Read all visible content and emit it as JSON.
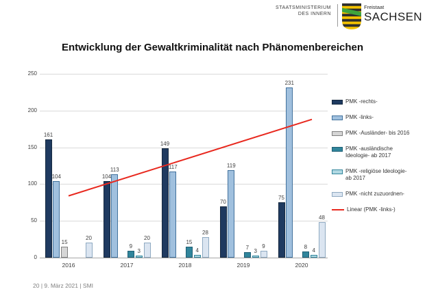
{
  "header": {
    "ministry_line1": "STAATSMINISTERIUM",
    "ministry_line2": "DES INNERN",
    "state_small": "Freistaat",
    "state_large": "SACHSEN"
  },
  "title": "Entwicklung der Gewaltkriminalität nach Phänomenbereichen",
  "footer": {
    "text": "20 | 9. März 2021 | SMI"
  },
  "chart_data": {
    "type": "bar",
    "title": "Entwicklung der Gewaltkriminalität nach Phänomenbereichen",
    "categories": [
      "2016",
      "2017",
      "2018",
      "2019",
      "2020"
    ],
    "series": [
      {
        "name": "PMK -rechts-",
        "color": "#1f3a60",
        "border": "#16293f",
        "values": [
          161,
          104,
          149,
          70,
          75
        ]
      },
      {
        "name": "PMK -links-",
        "color": "#a0c0de",
        "border": "#41719c",
        "values": [
          104,
          113,
          117,
          119,
          231
        ]
      },
      {
        "name": "PMK -Ausländer- bis 2016",
        "color": "#d6d6d6",
        "border": "#808080",
        "values": [
          15,
          null,
          null,
          null,
          null
        ]
      },
      {
        "name": "PMK -ausländische Ideologie- ab 2017",
        "color": "#31859b",
        "border": "#1f5f75",
        "values": [
          null,
          9,
          15,
          7,
          8
        ]
      },
      {
        "name": "PMK -religiöse Ideologie- ab 2017",
        "color": "#b0d8e2",
        "border": "#31859b",
        "values": [
          null,
          3,
          4,
          3,
          4
        ]
      },
      {
        "name": "PMK -nicht zuzuordnen-",
        "color": "#dbe5f1",
        "border": "#8ea9c1",
        "values": [
          20,
          20,
          28,
          9,
          48
        ]
      }
    ],
    "trend": {
      "name": "Linear (PMK -links-)",
      "color": "#e8281e",
      "start_value": 84,
      "end_value": 188
    },
    "ylim": [
      0,
      250
    ],
    "yticks": [
      0,
      50,
      100,
      150,
      200,
      250
    ],
    "xlabel": "",
    "ylabel": "",
    "grid": true,
    "legend_position": "right"
  }
}
